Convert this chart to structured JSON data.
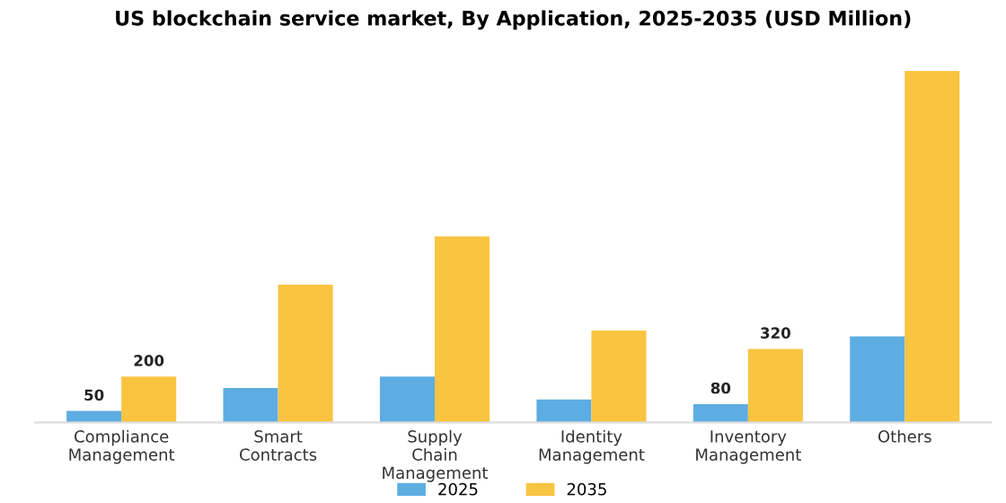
{
  "chart_data": {
    "type": "bar",
    "title": "US blockchain service market, By Application, 2025-2035 (USD Million)",
    "categories": [
      "Compliance\nManagement",
      "Smart\nContracts",
      "Supply\nChain\nManagement",
      "Identity\nManagement",
      "Inventory\nManagement",
      "Others"
    ],
    "series": [
      {
        "name": "2025",
        "color": "#5dade2",
        "values": [
          50,
          150,
          200,
          100,
          80,
          375
        ],
        "value_labels": [
          "50",
          null,
          null,
          null,
          "80",
          null
        ]
      },
      {
        "name": "2035",
        "color": "#f9c440",
        "values": [
          200,
          600,
          810,
          400,
          320,
          1530
        ],
        "value_labels": [
          "200",
          null,
          null,
          null,
          "320",
          null
        ]
      }
    ],
    "legend": "bottom",
    "grid": false
  }
}
